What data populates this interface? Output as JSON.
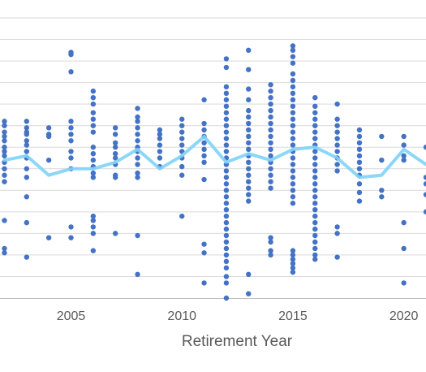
{
  "chart_data": {
    "type": "scatter",
    "title": "",
    "xlabel": "Retirement Year",
    "ylabel": "",
    "xlim": [
      2001.8,
      2021
    ],
    "ylim": [
      0,
      13
    ],
    "x_ticks": [
      2005,
      2010,
      2015,
      2020
    ],
    "grid": "horizontal",
    "legend": "none",
    "colors": {
      "points": "#4472C4",
      "trend": "#7FD3F7",
      "grid": "#D9D9D9",
      "axis": "#BFBFBF"
    },
    "series": [
      {
        "type": "scatter",
        "points": [
          [
            2002,
            8.2
          ],
          [
            2002,
            8.0
          ],
          [
            2002,
            7.7
          ],
          [
            2002,
            7.5
          ],
          [
            2002,
            7.3
          ],
          [
            2002,
            7.0
          ],
          [
            2002,
            6.8
          ],
          [
            2002,
            6.6
          ],
          [
            2002,
            6.3
          ],
          [
            2002,
            6.0
          ],
          [
            2002,
            5.7
          ],
          [
            2002,
            5.4
          ],
          [
            2002,
            3.6
          ],
          [
            2002,
            2.3
          ],
          [
            2002,
            2.1
          ],
          [
            2003,
            8.2
          ],
          [
            2003,
            7.9
          ],
          [
            2003,
            7.7
          ],
          [
            2003,
            7.6
          ],
          [
            2003,
            7.3
          ],
          [
            2003,
            7.1
          ],
          [
            2003,
            6.8
          ],
          [
            2003,
            6.5
          ],
          [
            2003,
            6.0
          ],
          [
            2003,
            5.6
          ],
          [
            2003,
            4.7
          ],
          [
            2003,
            3.5
          ],
          [
            2003,
            1.9
          ],
          [
            2004,
            7.9
          ],
          [
            2004,
            7.6
          ],
          [
            2004,
            7.5
          ],
          [
            2004,
            6.4
          ],
          [
            2004,
            2.8
          ],
          [
            2005,
            11.4
          ],
          [
            2005,
            11.3
          ],
          [
            2005,
            10.5
          ],
          [
            2005,
            8.2
          ],
          [
            2005,
            7.9
          ],
          [
            2005,
            7.6
          ],
          [
            2005,
            7.3
          ],
          [
            2005,
            6.8
          ],
          [
            2005,
            6.5
          ],
          [
            2005,
            6.0
          ],
          [
            2005,
            3.3
          ],
          [
            2005,
            2.8
          ],
          [
            2006,
            9.6
          ],
          [
            2006,
            9.3
          ],
          [
            2006,
            9.0
          ],
          [
            2006,
            8.6
          ],
          [
            2006,
            8.3
          ],
          [
            2006,
            8.0
          ],
          [
            2006,
            7.7
          ],
          [
            2006,
            7.0
          ],
          [
            2006,
            6.7
          ],
          [
            2006,
            6.4
          ],
          [
            2006,
            6.1
          ],
          [
            2006,
            5.8
          ],
          [
            2006,
            5.6
          ],
          [
            2006,
            3.8
          ],
          [
            2006,
            3.6
          ],
          [
            2006,
            3.3
          ],
          [
            2006,
            3.0
          ],
          [
            2006,
            2.2
          ],
          [
            2007,
            7.9
          ],
          [
            2007,
            7.6
          ],
          [
            2007,
            7.2
          ],
          [
            2007,
            7.0
          ],
          [
            2007,
            6.7
          ],
          [
            2007,
            6.5
          ],
          [
            2007,
            6.2
          ],
          [
            2007,
            5.7
          ],
          [
            2007,
            5.6
          ],
          [
            2007,
            3.0
          ],
          [
            2008,
            8.8
          ],
          [
            2008,
            8.4
          ],
          [
            2008,
            8.2
          ],
          [
            2008,
            7.9
          ],
          [
            2008,
            7.6
          ],
          [
            2008,
            7.3
          ],
          [
            2008,
            7.0
          ],
          [
            2008,
            6.8
          ],
          [
            2008,
            6.5
          ],
          [
            2008,
            6.2
          ],
          [
            2008,
            5.8
          ],
          [
            2008,
            5.6
          ],
          [
            2008,
            2.9
          ],
          [
            2008,
            1.1
          ],
          [
            2009,
            7.8
          ],
          [
            2009,
            7.6
          ],
          [
            2009,
            7.4
          ],
          [
            2009,
            7.1
          ],
          [
            2009,
            6.8
          ],
          [
            2009,
            6.5
          ],
          [
            2009,
            6.1
          ],
          [
            2010,
            8.3
          ],
          [
            2010,
            8.0
          ],
          [
            2010,
            7.7
          ],
          [
            2010,
            7.4
          ],
          [
            2010,
            7.1
          ],
          [
            2010,
            6.8
          ],
          [
            2010,
            6.5
          ],
          [
            2010,
            6.1
          ],
          [
            2010,
            5.7
          ],
          [
            2010,
            3.8
          ],
          [
            2011,
            9.2
          ],
          [
            2011,
            8.1
          ],
          [
            2011,
            7.8
          ],
          [
            2011,
            7.5
          ],
          [
            2011,
            7.2
          ],
          [
            2011,
            6.9
          ],
          [
            2011,
            6.6
          ],
          [
            2011,
            6.3
          ],
          [
            2011,
            5.5
          ],
          [
            2011,
            2.5
          ],
          [
            2011,
            2.1
          ],
          [
            2011,
            0.7
          ],
          [
            2012,
            11.1
          ],
          [
            2012,
            10.7
          ],
          [
            2012,
            9.8
          ],
          [
            2012,
            9.5
          ],
          [
            2012,
            9.2
          ],
          [
            2012,
            8.9
          ],
          [
            2012,
            8.6
          ],
          [
            2012,
            8.3
          ],
          [
            2012,
            8.0
          ],
          [
            2012,
            7.7
          ],
          [
            2012,
            7.4
          ],
          [
            2012,
            7.1
          ],
          [
            2012,
            6.8
          ],
          [
            2012,
            6.5
          ],
          [
            2012,
            6.2
          ],
          [
            2012,
            5.9
          ],
          [
            2012,
            5.6
          ],
          [
            2012,
            5.3
          ],
          [
            2012,
            5.0
          ],
          [
            2012,
            4.7
          ],
          [
            2012,
            4.4
          ],
          [
            2012,
            4.1
          ],
          [
            2012,
            3.8
          ],
          [
            2012,
            3.5
          ],
          [
            2012,
            3.2
          ],
          [
            2012,
            2.9
          ],
          [
            2012,
            2.6
          ],
          [
            2012,
            2.3
          ],
          [
            2012,
            2.0
          ],
          [
            2012,
            1.7
          ],
          [
            2012,
            1.4
          ],
          [
            2012,
            1.0
          ],
          [
            2012,
            0.7
          ],
          [
            2012,
            0.0
          ],
          [
            2013,
            11.5
          ],
          [
            2013,
            10.6
          ],
          [
            2013,
            9.7
          ],
          [
            2013,
            9.2
          ],
          [
            2013,
            8.7
          ],
          [
            2013,
            8.4
          ],
          [
            2013,
            8.1
          ],
          [
            2013,
            7.8
          ],
          [
            2013,
            7.5
          ],
          [
            2013,
            7.2
          ],
          [
            2013,
            6.9
          ],
          [
            2013,
            6.6
          ],
          [
            2013,
            6.3
          ],
          [
            2013,
            6.0
          ],
          [
            2013,
            5.7
          ],
          [
            2013,
            5.4
          ],
          [
            2013,
            5.1
          ],
          [
            2013,
            4.8
          ],
          [
            2013,
            4.5
          ],
          [
            2013,
            1.1
          ],
          [
            2013,
            0.2
          ],
          [
            2014,
            9.9
          ],
          [
            2014,
            9.6
          ],
          [
            2014,
            9.3
          ],
          [
            2014,
            9.0
          ],
          [
            2014,
            8.7
          ],
          [
            2014,
            8.4
          ],
          [
            2014,
            8.1
          ],
          [
            2014,
            7.8
          ],
          [
            2014,
            7.5
          ],
          [
            2014,
            7.2
          ],
          [
            2014,
            6.9
          ],
          [
            2014,
            6.6
          ],
          [
            2014,
            6.3
          ],
          [
            2014,
            6.0
          ],
          [
            2014,
            5.7
          ],
          [
            2014,
            5.4
          ],
          [
            2014,
            5.1
          ],
          [
            2014,
            2.8
          ],
          [
            2014,
            2.6
          ],
          [
            2014,
            2.2
          ],
          [
            2014,
            2.0
          ],
          [
            2015,
            11.7
          ],
          [
            2015,
            11.5
          ],
          [
            2015,
            11.2
          ],
          [
            2015,
            10.9
          ],
          [
            2015,
            10.4
          ],
          [
            2015,
            10.1
          ],
          [
            2015,
            9.8
          ],
          [
            2015,
            9.5
          ],
          [
            2015,
            9.2
          ],
          [
            2015,
            8.9
          ],
          [
            2015,
            8.6
          ],
          [
            2015,
            8.3
          ],
          [
            2015,
            8.0
          ],
          [
            2015,
            7.7
          ],
          [
            2015,
            7.4
          ],
          [
            2015,
            7.1
          ],
          [
            2015,
            6.8
          ],
          [
            2015,
            6.5
          ],
          [
            2015,
            6.2
          ],
          [
            2015,
            5.9
          ],
          [
            2015,
            5.6
          ],
          [
            2015,
            5.3
          ],
          [
            2015,
            5.0
          ],
          [
            2015,
            4.7
          ],
          [
            2015,
            4.4
          ],
          [
            2015,
            2.2
          ],
          [
            2015,
            2.0
          ],
          [
            2015,
            1.8
          ],
          [
            2015,
            1.6
          ],
          [
            2015,
            1.4
          ],
          [
            2015,
            1.2
          ],
          [
            2016,
            9.3
          ],
          [
            2016,
            8.9
          ],
          [
            2016,
            8.6
          ],
          [
            2016,
            8.3
          ],
          [
            2016,
            8.0
          ],
          [
            2016,
            7.7
          ],
          [
            2016,
            7.4
          ],
          [
            2016,
            7.1
          ],
          [
            2016,
            6.8
          ],
          [
            2016,
            6.5
          ],
          [
            2016,
            6.2
          ],
          [
            2016,
            5.9
          ],
          [
            2016,
            5.6
          ],
          [
            2016,
            5.3
          ],
          [
            2016,
            5.0
          ],
          [
            2016,
            4.7
          ],
          [
            2016,
            4.4
          ],
          [
            2016,
            4.1
          ],
          [
            2016,
            3.8
          ],
          [
            2016,
            3.5
          ],
          [
            2016,
            3.2
          ],
          [
            2016,
            2.9
          ],
          [
            2016,
            2.6
          ],
          [
            2016,
            2.3
          ],
          [
            2016,
            2.0
          ],
          [
            2016,
            1.8
          ],
          [
            2017,
            9.0
          ],
          [
            2017,
            8.3
          ],
          [
            2017,
            8.0
          ],
          [
            2017,
            7.7
          ],
          [
            2017,
            7.4
          ],
          [
            2017,
            7.1
          ],
          [
            2017,
            6.8
          ],
          [
            2017,
            6.5
          ],
          [
            2017,
            6.2
          ],
          [
            2017,
            5.9
          ],
          [
            2017,
            3.3
          ],
          [
            2017,
            3.0
          ],
          [
            2017,
            1.9
          ],
          [
            2018,
            7.8
          ],
          [
            2018,
            7.5
          ],
          [
            2018,
            7.2
          ],
          [
            2018,
            6.9
          ],
          [
            2018,
            6.6
          ],
          [
            2018,
            6.3
          ],
          [
            2018,
            6.0
          ],
          [
            2018,
            5.7
          ],
          [
            2018,
            5.3
          ],
          [
            2018,
            4.9
          ],
          [
            2018,
            4.5
          ],
          [
            2019,
            7.5
          ],
          [
            2019,
            6.4
          ],
          [
            2019,
            5.0
          ],
          [
            2019,
            4.7
          ],
          [
            2020,
            7.5
          ],
          [
            2020,
            7.1
          ],
          [
            2020,
            6.6
          ],
          [
            2020,
            6.4
          ],
          [
            2020,
            3.5
          ],
          [
            2020,
            2.3
          ],
          [
            2020,
            0.7
          ],
          [
            2021,
            7.0
          ],
          [
            2021,
            5.6
          ],
          [
            2021,
            5.3
          ],
          [
            2021,
            4.8
          ],
          [
            2021,
            4.0
          ]
        ]
      },
      {
        "type": "line",
        "points": [
          [
            2002,
            6.4
          ],
          [
            2003,
            6.6
          ],
          [
            2004,
            5.7
          ],
          [
            2005,
            6.0
          ],
          [
            2006,
            6.0
          ],
          [
            2007,
            6.3
          ],
          [
            2008,
            6.9
          ],
          [
            2009,
            6.0
          ],
          [
            2010,
            6.6
          ],
          [
            2011,
            7.5
          ],
          [
            2012,
            6.3
          ],
          [
            2013,
            6.7
          ],
          [
            2014,
            6.4
          ],
          [
            2015,
            6.9
          ],
          [
            2016,
            7.0
          ],
          [
            2017,
            6.5
          ],
          [
            2018,
            5.6
          ],
          [
            2019,
            5.7
          ],
          [
            2020,
            6.9
          ],
          [
            2021,
            6.2
          ]
        ]
      }
    ]
  }
}
